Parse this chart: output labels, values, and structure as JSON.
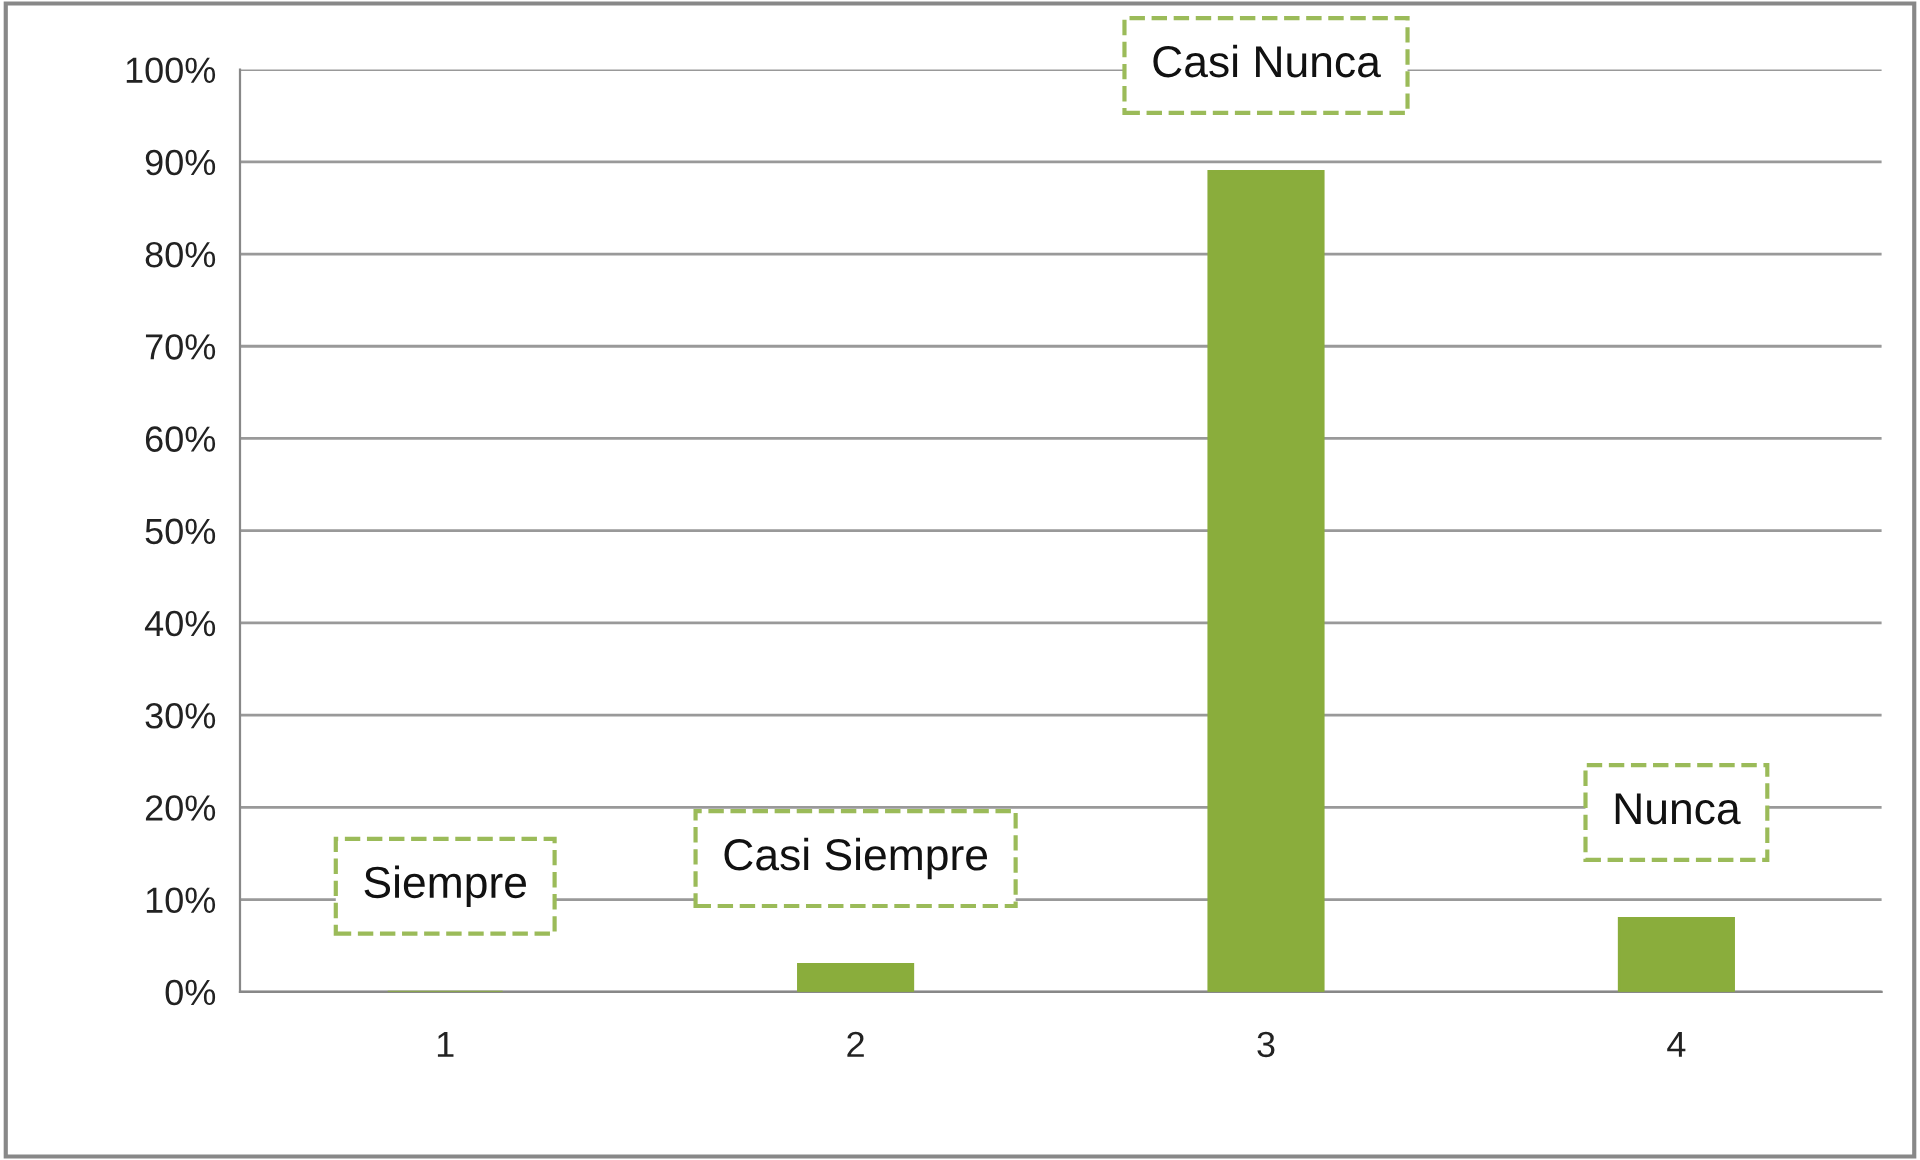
{
  "chart_data": {
    "type": "bar",
    "categories": [
      "1",
      "2",
      "3",
      "4"
    ],
    "values": [
      0,
      3,
      89,
      8
    ],
    "color": "#8aad3c",
    "value_labels": [
      "Siempre",
      "Casi Siempre",
      "Casi Nunca",
      "Nunca"
    ],
    "ylim": [
      0,
      100
    ],
    "yticks": [
      {
        "value": 0,
        "label": "0%"
      },
      {
        "value": 10,
        "label": "10%"
      },
      {
        "value": 20,
        "label": "20%"
      },
      {
        "value": 30,
        "label": "30%"
      },
      {
        "value": 40,
        "label": "40%"
      },
      {
        "value": 50,
        "label": "50%"
      },
      {
        "value": 60,
        "label": "60%"
      },
      {
        "value": 70,
        "label": "70%"
      },
      {
        "value": 80,
        "label": "80%"
      },
      {
        "value": 90,
        "label": "90%"
      },
      {
        "value": 100,
        "label": "100%"
      }
    ],
    "grid": "y",
    "legend": false
  }
}
